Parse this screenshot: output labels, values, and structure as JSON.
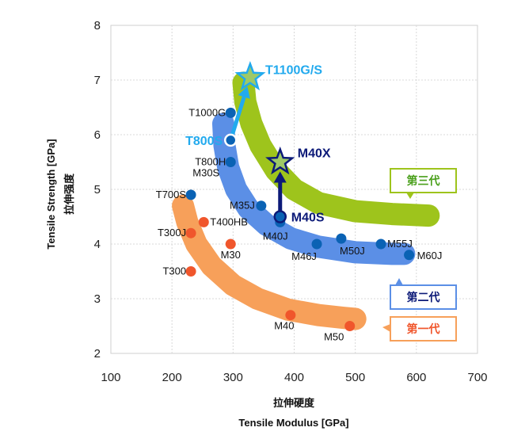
{
  "chart_data": {
    "type": "scatter",
    "title": "",
    "xlabel": "Tensile Modulus [GPa]",
    "xlabel_cn": "拉伸硬度",
    "ylabel": "Tensile Strength [GPa]",
    "ylabel_cn": "拉伸强度",
    "xlim": [
      100,
      700
    ],
    "ylim": [
      2,
      8
    ],
    "xticks": [
      "100",
      "200",
      "300",
      "400",
      "500",
      "600",
      "700"
    ],
    "yticks": [
      "2",
      "3",
      "4",
      "5",
      "6",
      "7",
      "8"
    ],
    "grid": true,
    "colors": {
      "gen1_band": "#f7a05a",
      "gen2_band": "#5b8fe6",
      "gen3_band": "#9ec41c",
      "gen1_point": "#f0562c",
      "gen2_point": "#0a62b4",
      "t_arrow": "#22aaee",
      "m_arrow": "#0c1a78",
      "star_fill": "#9ec966",
      "gen1_label": "#f0562c",
      "gen2_label": "#0c1a78",
      "gen3_label": "#4aa01c"
    },
    "series": [
      {
        "name": "第一代",
        "points": [
          {
            "label": "T300",
            "x": 231,
            "y": 3.5
          },
          {
            "label": "T300J",
            "x": 231,
            "y": 4.2
          },
          {
            "label": "T400HB",
            "x": 252,
            "y": 4.4
          },
          {
            "label": "M30",
            "x": 296,
            "y": 4.0
          },
          {
            "label": "M40",
            "x": 394,
            "y": 2.7
          },
          {
            "label": "M50",
            "x": 491,
            "y": 2.5
          }
        ]
      },
      {
        "name": "第二代",
        "points": [
          {
            "label": "T700S",
            "x": 231,
            "y": 4.9
          },
          {
            "label": "T800H",
            "x": 296,
            "y": 5.5
          },
          {
            "label": "M30S",
            "x": 296,
            "y": 5.5
          },
          {
            "label": "T800S",
            "x": 296,
            "y": 5.9
          },
          {
            "label": "T1000G",
            "x": 296,
            "y": 6.4
          },
          {
            "label": "M35J",
            "x": 346,
            "y": 4.7
          },
          {
            "label": "M40J",
            "x": 377,
            "y": 4.4
          },
          {
            "label": "M40S",
            "x": 377,
            "y": 4.5
          },
          {
            "label": "M46J",
            "x": 437,
            "y": 4.0
          },
          {
            "label": "M50J",
            "x": 477,
            "y": 4.1
          },
          {
            "label": "M55J",
            "x": 542,
            "y": 4.0
          },
          {
            "label": "M60J",
            "x": 588,
            "y": 3.8
          }
        ]
      },
      {
        "name": "第三代",
        "points": [
          {
            "label": "T1100G/S",
            "x": 328,
            "y": 7.05
          },
          {
            "label": "M40X",
            "x": 377,
            "y": 5.5
          }
        ]
      }
    ],
    "arrows": [
      {
        "from": "T800S",
        "to": "T1100G/S"
      },
      {
        "from": "M40S",
        "to": "M40X"
      }
    ],
    "legend": [
      "第三代",
      "第二代",
      "第一代"
    ],
    "legend_placement": "right"
  }
}
